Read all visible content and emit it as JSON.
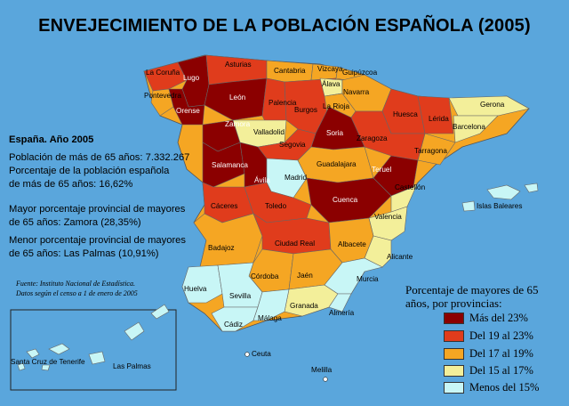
{
  "title": "ENVEJECIMIENTO DE LA POBLACIÓN ESPAÑOLA (2005)",
  "stats": {
    "heading": "España. Año 2005",
    "line1": "Población de más de 65 años: 7.332.267",
    "line2": "Porcentaje de la población española",
    "line3": "de más de 65 años: 16,62%",
    "line4": "Mayor porcentaje provincial de mayores",
    "line5": "de 65 años: Zamora (28,35%)",
    "line6": "Menor porcentaje provincial de mayores",
    "line7": "de 65 años: Las Palmas (10,91%)"
  },
  "source": {
    "line1": "Fuente: Instituto Nacional de Estadística.",
    "line2": "Datos según el censo a 1 de enero de 2005"
  },
  "legend": {
    "title_line1": "Porcentaje de mayores de 65",
    "title_line2": "años, por provincias:",
    "items": [
      {
        "label": "Más del 23%",
        "color": "#8b0000"
      },
      {
        "label": "Del 19 al 23%",
        "color": "#e03c1c"
      },
      {
        "label": "Del 17 al 19%",
        "color": "#f5a623"
      },
      {
        "label": "Del 15 al 17%",
        "color": "#f3ef9a"
      },
      {
        "label": "Menos del 15%",
        "color": "#c8f6f6"
      }
    ]
  },
  "provinces": [
    {
      "name": "La Coruña",
      "class": 1
    },
    {
      "name": "Lugo",
      "class": 0
    },
    {
      "name": "Asturias",
      "class": 1
    },
    {
      "name": "Cantabria",
      "class": 2
    },
    {
      "name": "Vizcaya",
      "class": 2
    },
    {
      "name": "Guipúzcoa",
      "class": 2
    },
    {
      "name": "Pontevedra",
      "class": 2
    },
    {
      "name": "Orense",
      "class": 0
    },
    {
      "name": "León",
      "class": 0
    },
    {
      "name": "Palencia",
      "class": 1
    },
    {
      "name": "Burgos",
      "class": 1
    },
    {
      "name": "Álava",
      "class": 3
    },
    {
      "name": "Navarra",
      "class": 2
    },
    {
      "name": "La Rioja",
      "class": 2
    },
    {
      "name": "Huesca",
      "class": 1
    },
    {
      "name": "Lérida",
      "class": 1
    },
    {
      "name": "Gerona",
      "class": 3
    },
    {
      "name": "Barcelona",
      "class": 3
    },
    {
      "name": "Tarragona",
      "class": 2
    },
    {
      "name": "Zamora",
      "class": 0
    },
    {
      "name": "Valladolid",
      "class": 3
    },
    {
      "name": "Soria",
      "class": 0
    },
    {
      "name": "Zaragoza",
      "class": 1
    },
    {
      "name": "Segovia",
      "class": 1
    },
    {
      "name": "Salamanca",
      "class": 0
    },
    {
      "name": "Ávila",
      "class": 0
    },
    {
      "name": "Madrid",
      "class": 4
    },
    {
      "name": "Guadalajara",
      "class": 2
    },
    {
      "name": "Teruel",
      "class": 0
    },
    {
      "name": "Castellón",
      "class": 3
    },
    {
      "name": "Cuenca",
      "class": 0
    },
    {
      "name": "Valencia",
      "class": 3
    },
    {
      "name": "Islas Baleares",
      "class": 4
    },
    {
      "name": "Cáceres",
      "class": 1
    },
    {
      "name": "Toledo",
      "class": 1
    },
    {
      "name": "Badajoz",
      "class": 2
    },
    {
      "name": "Ciudad Real",
      "class": 1
    },
    {
      "name": "Albacete",
      "class": 2
    },
    {
      "name": "Alicante",
      "class": 3
    },
    {
      "name": "Córdoba",
      "class": 2
    },
    {
      "name": "Jaén",
      "class": 2
    },
    {
      "name": "Huelva",
      "class": 4
    },
    {
      "name": "Sevilla",
      "class": 4
    },
    {
      "name": "Granada",
      "class": 3
    },
    {
      "name": "Murcia",
      "class": 4
    },
    {
      "name": "Cádiz",
      "class": 4
    },
    {
      "name": "Málaga",
      "class": 4
    },
    {
      "name": "Almería",
      "class": 4
    },
    {
      "name": "Ceuta",
      "class": 4
    },
    {
      "name": "Melilla",
      "class": 4
    },
    {
      "name": "Santa Cruz de Tenerife",
      "class": 4
    },
    {
      "name": "Las Palmas",
      "class": 4
    }
  ]
}
